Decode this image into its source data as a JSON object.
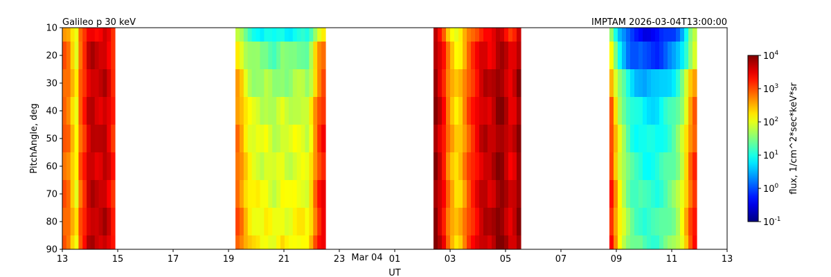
{
  "chart_data": {
    "type": "heatmap",
    "title_left": "Galileo p 30 keV",
    "title_right": "IMPTAM 2026-03-04T13:00:00",
    "xlabel": "UT",
    "ylabel": "PitchAngle, deg",
    "x_tick_labels": [
      "13",
      "15",
      "17",
      "19",
      "21",
      "23",
      "01",
      "03",
      "05",
      "07",
      "09",
      "11",
      "13"
    ],
    "x_date_label": "Mar 04",
    "y_tick_labels": [
      "10",
      "20",
      "30",
      "40",
      "50",
      "60",
      "70",
      "80",
      "90"
    ],
    "xlim_hours": [
      13,
      37
    ],
    "ylim": [
      10,
      90
    ],
    "y_inverted": true,
    "colorbar": {
      "label": "flux, 1/cm^2*sec*keV*sr",
      "scale": "log",
      "range": [
        0.1,
        10000
      ],
      "tick_labels": [
        "10^4",
        "10^3",
        "10^2",
        "10^1",
        "10^0",
        "10^-1"
      ],
      "colormap": "jet"
    },
    "pitch_bins": [
      10,
      20,
      30,
      40,
      50,
      60,
      70,
      80,
      90
    ],
    "segments": [
      {
        "start_hour": 13.0,
        "end_hour": 14.9,
        "columns": 13,
        "log10_flux_profile": [
          2.9,
          2.8,
          2.4,
          2.1,
          2.9,
          3.2,
          3.6,
          3.7,
          3.6,
          3.6,
          3.7,
          3.5,
          3.2
        ],
        "pitch_offset": [
          -0.15,
          0,
          0,
          0,
          0,
          0,
          0,
          0.05,
          0.05
        ]
      },
      {
        "start_hour": 19.25,
        "end_hour": 22.5,
        "columns": 22,
        "log10_flux_profile": [
          2.8,
          2.6,
          2.3,
          2.1,
          2.0,
          2.0,
          1.9,
          2.0,
          1.9,
          1.8,
          1.9,
          2.0,
          1.9,
          1.9,
          2.0,
          2.0,
          2.0,
          1.9,
          2.2,
          2.7,
          3.1,
          3.3
        ],
        "pitch_offset": [
          -1.0,
          -0.5,
          -0.3,
          -0.1,
          0,
          0,
          0.1,
          0.15,
          0.2
        ]
      },
      {
        "start_hour": 26.4,
        "end_hour": 29.55,
        "columns": 21,
        "log10_flux_profile": [
          3.9,
          3.6,
          3.3,
          2.8,
          2.5,
          2.3,
          2.4,
          2.7,
          3.0,
          3.2,
          3.4,
          3.6,
          3.7,
          3.6,
          3.7,
          3.9,
          3.9,
          3.7,
          3.5,
          3.6,
          3.9
        ],
        "pitch_offset": [
          -0.3,
          -0.1,
          0,
          0,
          0,
          0,
          0,
          0.05,
          0.05
        ]
      },
      {
        "start_hour": 32.75,
        "end_hour": 35.9,
        "columns": 21,
        "log10_flux_profile": [
          3.1,
          2.5,
          2.0,
          1.7,
          1.4,
          1.2,
          1.1,
          1.1,
          1.0,
          1.0,
          1.0,
          1.0,
          1.1,
          1.2,
          1.3,
          1.4,
          1.6,
          1.9,
          2.3,
          2.8,
          3.1
        ],
        "pitch_offset": [
          -1.4,
          -1.1,
          -0.5,
          -0.2,
          -0.1,
          0,
          0.1,
          0.15,
          0.2
        ]
      }
    ]
  }
}
